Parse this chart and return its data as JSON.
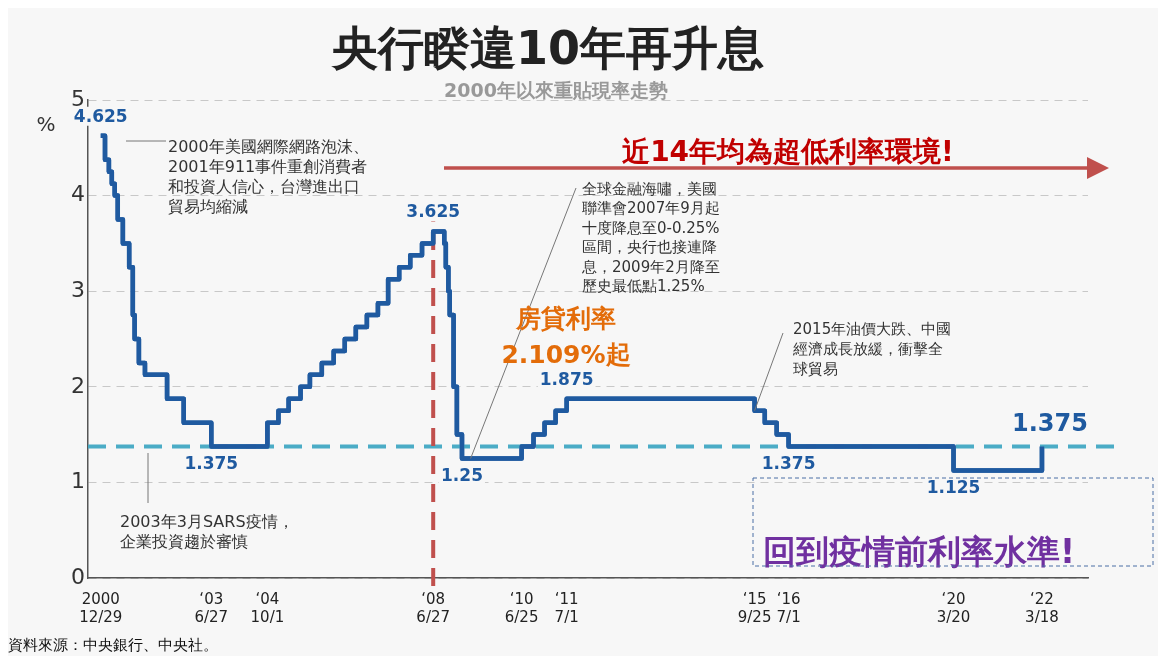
{
  "chart_data": {
    "type": "step",
    "title": "央行睽違10年再升息",
    "subtitle": "2000年以來重貼現率走勢",
    "ylabel": "%",
    "x": [
      "2000-12-29",
      "2001-02-02",
      "2001-03-06",
      "2001-03-30",
      "2001-04-23",
      "2001-05-18",
      "2001-06-29",
      "2001-08-20",
      "2001-09-19",
      "2001-10-04",
      "2001-11-08",
      "2001-12-28",
      "2002-06-28",
      "2002-11-12",
      "2003-06-27",
      "2004-10-01",
      "2004-12-31",
      "2005-03-25",
      "2005-07-01",
      "2005-09-16",
      "2005-12-23",
      "2006-03-31",
      "2006-06-30",
      "2006-09-29",
      "2006-12-29",
      "2007-03-30",
      "2007-06-22",
      "2007-09-21",
      "2007-12-21",
      "2008-03-27",
      "2008-06-27",
      "2008-09-26",
      "2008-10-09",
      "2008-10-30",
      "2008-11-10",
      "2008-12-12",
      "2009-01-08",
      "2009-02-19",
      "2010-06-25",
      "2010-10-01",
      "2010-12-31",
      "2011-04-01",
      "2011-07-01",
      "2015-09-25",
      "2015-12-18",
      "2016-03-25",
      "2016-07-01",
      "2020-03-20",
      "2022-03-18"
    ],
    "series": [
      {
        "color": "#1f5aa0",
        "values": [
          4.625,
          4.375,
          4.25,
          4.125,
          4.0,
          3.75,
          3.5,
          3.25,
          2.75,
          2.5,
          2.25,
          2.125,
          1.875,
          1.625,
          1.375,
          1.625,
          1.75,
          1.875,
          2.0,
          2.125,
          2.25,
          2.375,
          2.5,
          2.625,
          2.75,
          2.875,
          3.125,
          3.25,
          3.375,
          3.5,
          3.625,
          3.5,
          3.25,
          3.0,
          2.75,
          2.0,
          1.5,
          1.25,
          1.375,
          1.5,
          1.625,
          1.75,
          1.875,
          1.75,
          1.625,
          1.5,
          1.375,
          1.125,
          1.375
        ],
        "value_labels": [
          "4.625",
          null,
          null,
          null,
          null,
          null,
          null,
          null,
          null,
          null,
          null,
          null,
          null,
          null,
          "1.375",
          null,
          null,
          null,
          null,
          null,
          null,
          null,
          null,
          null,
          null,
          null,
          null,
          null,
          null,
          null,
          "3.625",
          null,
          null,
          null,
          null,
          null,
          null,
          "1.25",
          null,
          null,
          null,
          null,
          "1.875",
          null,
          null,
          null,
          "1.375",
          "1.125",
          "1.375"
        ]
      }
    ],
    "xlim": [
      "2000-09-15",
      "2023-04-01"
    ],
    "xticks": [
      {
        "value": "2000-12-29",
        "label": "2000\n12/29"
      },
      {
        "value": "2003-06-27",
        "label": "‘03\n6/27"
      },
      {
        "value": "2004-10-01",
        "label": "‘04\n10/1"
      },
      {
        "value": "2008-06-27",
        "label": "‘08\n6/27"
      },
      {
        "value": "2010-06-25",
        "label": "‘10\n6/25"
      },
      {
        "value": "2011-07-01",
        "label": "‘11\n7/1"
      },
      {
        "value": "2015-09-25",
        "label": "‘15\n9/25"
      },
      {
        "value": "2016-07-01",
        "label": "‘16\n7/1"
      },
      {
        "value": "2020-03-20",
        "label": "‘20\n3/20"
      },
      {
        "value": "2022-03-18",
        "label": "‘22\n3/18"
      }
    ],
    "ylim": [
      0,
      5
    ],
    "yticks": [
      0,
      1,
      2,
      3,
      4,
      5
    ],
    "grid": "y",
    "legend": false,
    "ref_lines": [
      {
        "axis": "y",
        "value": 1.375,
        "color": "#4bacc6",
        "line_style": "dashed"
      },
      {
        "axis": "x",
        "value": "2008-06-27",
        "color": "#c0504d",
        "line_style": "dashed"
      }
    ],
    "annotations": [
      "2000年美國網際網路泡沫、2001年911事件重創消費者和投資人信心，台灣進出口貿易均縮減",
      {
        "text": "全球金融海嘯，美國聯準會2007年9月起十度降息至0-0.25%區間，央行也接連降息，2009年2月降至歷史最低點1.25%",
        "x": "2009-05-01",
        "y": 1.25
      },
      {
        "text": "2015年油價大跌、中國經濟成長放緩，衝擊全球貿易",
        "x": "2015-09-25",
        "y": 1.75
      },
      "2003年3月SARS疫情，企業投資趨於審慎",
      "房貸利率",
      "2.109%起",
      "近14年均為超低利率環境!",
      "回到疫情前利率水準!",
      "資料來源：中央銀行、中央社。"
    ]
  }
}
